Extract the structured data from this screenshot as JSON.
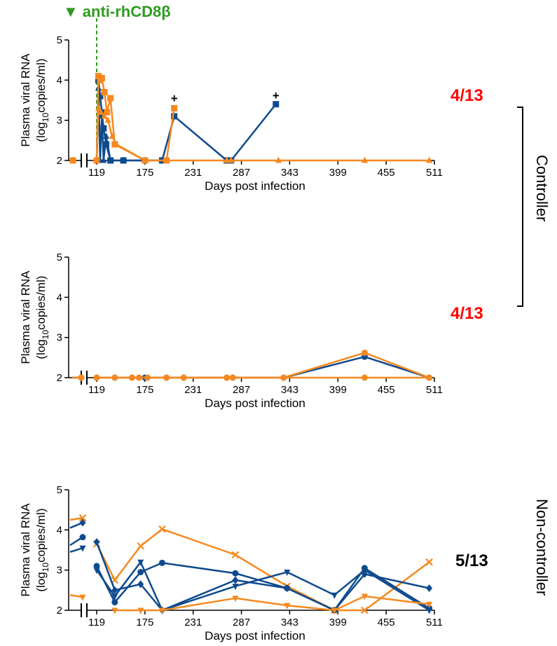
{
  "header": {
    "marker": "▼",
    "label": "anti-rhCD8β",
    "color": "#2e9b1f"
  },
  "colors": {
    "blue": "#0e4a8e",
    "orange": "#f5891f",
    "red": "#ff0000",
    "dash": "#2e9b1f"
  },
  "ratios": {
    "panel1": "4/13",
    "panel2": "4/13",
    "panel3": "5/13"
  },
  "groups": {
    "controller": "Controller",
    "noncontroller": "Non-controller"
  },
  "chart_data": [
    {
      "type": "line",
      "xlabel": "Days post infection",
      "ylabel": "Plasma viral RNA",
      "ylabel_units": "(log10copies/ml)",
      "xticks": [
        119,
        175,
        231,
        287,
        343,
        399,
        455,
        511
      ],
      "yticks": [
        2,
        3,
        4,
        5
      ],
      "ylim": [
        2,
        5
      ],
      "xlim": [
        119,
        511
      ],
      "axis_break": true,
      "treatment_day": 119,
      "annotations": [
        {
          "text": "+",
          "x": 209,
          "y": 3.45
        },
        {
          "text": "+",
          "x": 327,
          "y": 3.52
        }
      ],
      "series": [
        {
          "color": "blue",
          "marker": "square",
          "pre": [
            2,
            2
          ],
          "x": [
            119,
            121,
            123,
            125,
            127,
            130,
            135,
            150,
            175,
            195,
            209,
            270,
            275,
            327
          ],
          "y": [
            2,
            4.0,
            3.6,
            3.2,
            2.8,
            2.4,
            2,
            2,
            2,
            2,
            3.1,
            2,
            2,
            3.4
          ]
        },
        {
          "color": "blue",
          "marker": "triangle",
          "pre": [
            2,
            2
          ],
          "x": [
            119,
            121,
            123,
            125,
            127,
            130,
            135,
            150,
            175,
            195
          ],
          "y": [
            2,
            3.8,
            2.0,
            3.1,
            2.0,
            2.6,
            2,
            2,
            2,
            2
          ]
        },
        {
          "color": "orange",
          "marker": "square",
          "pre": [
            2,
            2
          ],
          "x": [
            119,
            121,
            123,
            125,
            128,
            131,
            135,
            140,
            175,
            200,
            209
          ],
          "y": [
            2,
            4.1,
            4.0,
            4.05,
            3.7,
            3.2,
            3.55,
            2.4,
            2,
            2,
            3.3
          ]
        },
        {
          "color": "orange",
          "marker": "triangle",
          "pre": [
            2,
            2
          ],
          "x": [
            119,
            121,
            124,
            128,
            132,
            137,
            142,
            175,
            200,
            270,
            275,
            330,
            430,
            505
          ],
          "y": [
            2,
            3.3,
            3.2,
            3.1,
            3.0,
            2.6,
            2.4,
            2,
            2,
            2,
            2,
            2,
            2,
            2
          ]
        }
      ]
    },
    {
      "type": "line",
      "xlabel": "Days post infection",
      "ylabel": "Plasma viral RNA",
      "ylabel_units": "(log10copies/ml)",
      "xticks": [
        119,
        175,
        231,
        287,
        343,
        399,
        455,
        511
      ],
      "yticks": [
        2,
        3,
        4,
        5
      ],
      "ylim": [
        2,
        5
      ],
      "xlim": [
        119,
        511
      ],
      "axis_break": true,
      "series": [
        {
          "color": "blue",
          "marker": "circle",
          "pre": [
            2,
            2
          ],
          "x": [
            119,
            140,
            160,
            175,
            200,
            220,
            270,
            277,
            336,
            430,
            505
          ],
          "y": [
            2,
            2,
            2,
            2,
            2,
            2,
            2,
            2,
            2,
            2.52,
            2
          ]
        },
        {
          "color": "orange",
          "marker": "circle",
          "pre": [
            2,
            2
          ],
          "x": [
            119,
            140,
            160,
            168,
            178,
            200,
            220,
            270,
            277,
            336,
            430,
            505
          ],
          "y": [
            2,
            2,
            2,
            2,
            2,
            2,
            2,
            2,
            2,
            2,
            2.62,
            2
          ]
        },
        {
          "color": "orange",
          "marker": "circle",
          "pre": [
            2,
            2
          ],
          "x": [
            119,
            200,
            277,
            336,
            430,
            505
          ],
          "y": [
            2,
            2,
            2,
            2,
            2,
            2
          ]
        }
      ]
    },
    {
      "type": "line",
      "xlabel": "Days post infection",
      "ylabel": "Plasma viral RNA",
      "ylabel_units": "(log10copies/ml)",
      "xticks": [
        119,
        175,
        231,
        287,
        343,
        399,
        455,
        511
      ],
      "yticks": [
        2,
        3,
        4,
        5
      ],
      "ylim": [
        2,
        5
      ],
      "xlim": [
        119,
        511
      ],
      "axis_break": true,
      "series": [
        {
          "color": "orange",
          "marker": "x",
          "pre": [
            4.25,
            4.3
          ],
          "x": [
            119,
            140,
            170,
            195,
            280,
            340,
            395,
            430,
            505
          ],
          "y": [
            3.65,
            2.75,
            3.6,
            4.02,
            3.38,
            2.6,
            2.0,
            2.0,
            3.2
          ]
        },
        {
          "color": "blue",
          "marker": "diamond",
          "pre": [
            4.05,
            4.18
          ],
          "x": [
            119,
            140,
            170,
            195,
            280,
            340,
            395,
            430,
            505
          ],
          "y": [
            3.7,
            2.5,
            2.65,
            2.0,
            2.75,
            2.55,
            2.0,
            2.9,
            2.55
          ]
        },
        {
          "color": "blue",
          "marker": "circle",
          "pre": [
            3.62,
            3.82
          ],
          "x": [
            119,
            140,
            170,
            195,
            280,
            340,
            395,
            430,
            505
          ],
          "y": [
            3.1,
            2.2,
            2.95,
            3.18,
            2.92,
            2.55,
            2.0,
            3.05,
            2.05
          ]
        },
        {
          "color": "blue",
          "marker": "tri-down",
          "pre": [
            3.45,
            3.55
          ],
          "x": [
            119,
            140,
            170,
            195,
            280,
            340,
            395,
            430,
            505
          ],
          "y": [
            3.0,
            2.35,
            3.2,
            2.0,
            2.6,
            2.95,
            2.38,
            3.0,
            2.0
          ]
        },
        {
          "color": "orange",
          "marker": "tri-down",
          "pre": [
            2.38,
            2.33
          ],
          "x": [
            140,
            170,
            195,
            280,
            340,
            395,
            430,
            505
          ],
          "y": [
            2.0,
            2.0,
            2.0,
            2.3,
            2.12,
            2.0,
            2.35,
            2.15
          ]
        }
      ]
    }
  ]
}
